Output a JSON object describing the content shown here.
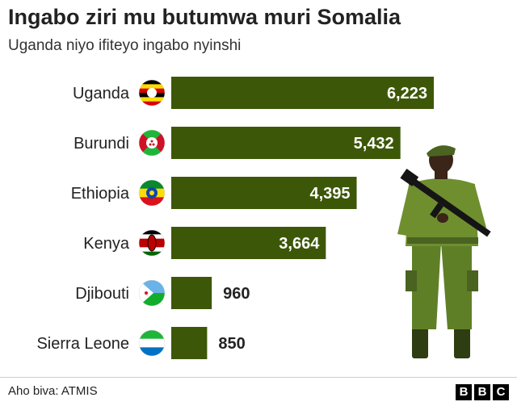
{
  "header": {
    "title": "Ingabo ziri mu butumwa muri Somalia",
    "subtitle": "Uganda niyo ifiteyo ingabo nyinshi"
  },
  "footer": {
    "source": "Aho biva: ATMIS",
    "logo_letters": [
      "B",
      "B",
      "C"
    ]
  },
  "colors": {
    "bar": "#3d5708",
    "soldier_uniform": "#6f8f2f",
    "soldier_dark": "#4a6321",
    "skin": "#3b2418"
  },
  "icons": [
    "flag-uganda-icon",
    "flag-burundi-icon",
    "flag-ethiopia-icon",
    "flag-kenya-icon",
    "flag-djibouti-icon",
    "flag-sierra-leone-icon",
    "soldier-illustration"
  ],
  "chart_data": {
    "type": "bar",
    "orientation": "horizontal",
    "categories": [
      "Uganda",
      "Burundi",
      "Ethiopia",
      "Kenya",
      "Djibouti",
      "Sierra Leone"
    ],
    "values": [
      6223,
      5432,
      4395,
      3664,
      960,
      850
    ],
    "value_labels": [
      "6,223",
      "5,432",
      "4,395",
      "3,664",
      "960",
      "850"
    ],
    "flags": [
      "uganda",
      "burundi",
      "ethiopia",
      "kenya",
      "djibouti",
      "sierra-leone"
    ]
  }
}
